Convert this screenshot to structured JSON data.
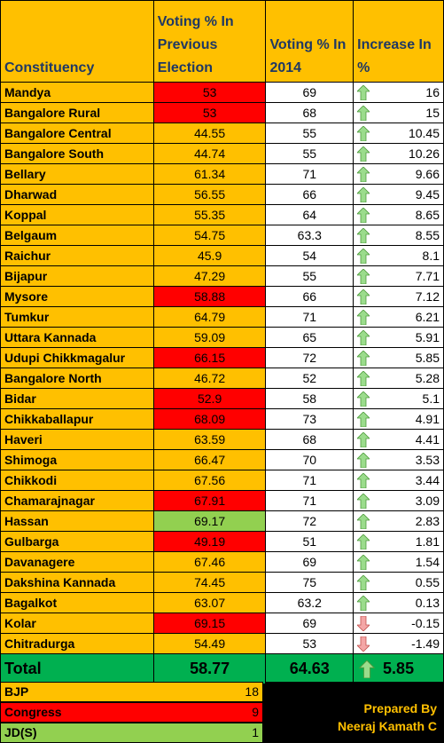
{
  "headers": {
    "constituency": "Constituency",
    "previous": "Voting % In Previous Election",
    "current": "Voting % In 2014",
    "increase": "Increase In %"
  },
  "rows": [
    {
      "name": "Mandya",
      "prev": "53",
      "prev_color": "red",
      "now": "69",
      "inc": "16",
      "dir": "up"
    },
    {
      "name": "Bangalore Rural",
      "prev": "53",
      "prev_color": "red",
      "now": "68",
      "inc": "15",
      "dir": "up"
    },
    {
      "name": "Bangalore Central",
      "prev": "44.55",
      "prev_color": "orange",
      "now": "55",
      "inc": "10.45",
      "dir": "up"
    },
    {
      "name": "Bangalore South",
      "prev": "44.74",
      "prev_color": "orange",
      "now": "55",
      "inc": "10.26",
      "dir": "up"
    },
    {
      "name": "Bellary",
      "prev": "61.34",
      "prev_color": "orange",
      "now": "71",
      "inc": "9.66",
      "dir": "up"
    },
    {
      "name": "Dharwad",
      "prev": "56.55",
      "prev_color": "orange",
      "now": "66",
      "inc": "9.45",
      "dir": "up"
    },
    {
      "name": "Koppal",
      "prev": "55.35",
      "prev_color": "orange",
      "now": "64",
      "inc": "8.65",
      "dir": "up"
    },
    {
      "name": "Belgaum",
      "prev": "54.75",
      "prev_color": "orange",
      "now": "63.3",
      "inc": "8.55",
      "dir": "up"
    },
    {
      "name": "Raichur",
      "prev": "45.9",
      "prev_color": "orange",
      "now": "54",
      "inc": "8.1",
      "dir": "up"
    },
    {
      "name": "Bijapur",
      "prev": "47.29",
      "prev_color": "orange",
      "now": "55",
      "inc": "7.71",
      "dir": "up"
    },
    {
      "name": "Mysore",
      "prev": "58.88",
      "prev_color": "red",
      "now": "66",
      "inc": "7.12",
      "dir": "up"
    },
    {
      "name": "Tumkur",
      "prev": "64.79",
      "prev_color": "orange",
      "now": "71",
      "inc": "6.21",
      "dir": "up"
    },
    {
      "name": "Uttara Kannada",
      "prev": "59.09",
      "prev_color": "orange",
      "now": "65",
      "inc": "5.91",
      "dir": "up"
    },
    {
      "name": "Udupi Chikkmagalur",
      "prev": "66.15",
      "prev_color": "red",
      "now": "72",
      "inc": "5.85",
      "dir": "up"
    },
    {
      "name": "Bangalore North",
      "prev": "46.72",
      "prev_color": "orange",
      "now": "52",
      "inc": "5.28",
      "dir": "up"
    },
    {
      "name": "Bidar",
      "prev": "52.9",
      "prev_color": "red",
      "now": "58",
      "inc": "5.1",
      "dir": "up"
    },
    {
      "name": "Chikkaballapur",
      "prev": "68.09",
      "prev_color": "red",
      "now": "73",
      "inc": "4.91",
      "dir": "up"
    },
    {
      "name": "Haveri",
      "prev": "63.59",
      "prev_color": "orange",
      "now": "68",
      "inc": "4.41",
      "dir": "up"
    },
    {
      "name": "Shimoga",
      "prev": "66.47",
      "prev_color": "orange",
      "now": "70",
      "inc": "3.53",
      "dir": "up"
    },
    {
      "name": "Chikkodi",
      "prev": "67.56",
      "prev_color": "orange",
      "now": "71",
      "inc": "3.44",
      "dir": "up"
    },
    {
      "name": "Chamarajnagar",
      "prev": "67.91",
      "prev_color": "red",
      "now": "71",
      "inc": "3.09",
      "dir": "up"
    },
    {
      "name": "Hassan",
      "prev": "69.17",
      "prev_color": "green",
      "now": "72",
      "inc": "2.83",
      "dir": "up"
    },
    {
      "name": "Gulbarga",
      "prev": "49.19",
      "prev_color": "red",
      "now": "51",
      "inc": "1.81",
      "dir": "up"
    },
    {
      "name": "Davanagere",
      "prev": "67.46",
      "prev_color": "orange",
      "now": "69",
      "inc": "1.54",
      "dir": "up"
    },
    {
      "name": "Dakshina Kannada",
      "prev": "74.45",
      "prev_color": "orange",
      "now": "75",
      "inc": "0.55",
      "dir": "up"
    },
    {
      "name": "Bagalkot",
      "prev": "63.07",
      "prev_color": "orange",
      "now": "63.2",
      "inc": "0.13",
      "dir": "up"
    },
    {
      "name": "Kolar",
      "prev": "69.15",
      "prev_color": "red",
      "now": "69",
      "inc": "-0.15",
      "dir": "down"
    },
    {
      "name": "Chitradurga",
      "prev": "54.49",
      "prev_color": "orange",
      "now": "53",
      "inc": "-1.49",
      "dir": "down"
    }
  ],
  "total": {
    "label": "Total",
    "prev": "58.77",
    "now": "64.63",
    "inc": "5.85"
  },
  "legend": [
    {
      "party": "BJP",
      "count": "18",
      "color": "orange"
    },
    {
      "party": "Congress",
      "count": "9",
      "color": "red"
    },
    {
      "party": "JD(S)",
      "count": "1",
      "color": "green"
    }
  ],
  "credit": {
    "line1": "Prepared By",
    "line2": "Neeraj Kamath C"
  },
  "colors": {
    "orange": "#ffc000",
    "red": "#ff0000",
    "green": "#92d050",
    "total_green": "#00b050",
    "up_arrow": "#9bdc8c",
    "down_arrow": "#f4a6a6"
  },
  "icons": {
    "up": "up-arrow-icon",
    "down": "down-arrow-icon"
  }
}
